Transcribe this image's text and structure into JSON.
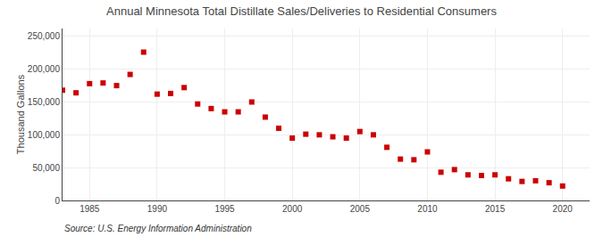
{
  "chart_data": {
    "type": "scatter",
    "title": "Annual Minnesota Total Distillate Sales/Deliveries to Residential Consumers",
    "ylabel": "Thousand Gallons",
    "annotations": [
      "Source: U.S. Energy Information Administration"
    ],
    "x": [
      1983,
      1984,
      1985,
      1986,
      1987,
      1988,
      1989,
      1990,
      1991,
      1992,
      1993,
      1994,
      1995,
      1996,
      1997,
      1998,
      1999,
      2000,
      2001,
      2002,
      2003,
      2004,
      2005,
      2006,
      2007,
      2008,
      2009,
      2010,
      2011,
      2012,
      2013,
      2014,
      2015,
      2016,
      2017,
      2018,
      2019,
      2020
    ],
    "values": [
      168000,
      164000,
      178000,
      179000,
      175000,
      192000,
      226000,
      162000,
      163000,
      172000,
      147000,
      140000,
      135000,
      135000,
      150000,
      127000,
      110000,
      95000,
      101000,
      100000,
      97000,
      95000,
      105000,
      100000,
      81000,
      63000,
      62000,
      74000,
      43000,
      47000,
      39000,
      38000,
      39000,
      33000,
      29000,
      30000,
      27000,
      22000
    ],
    "color": "#cc0000",
    "marker": "square",
    "xlim": [
      1983,
      2022
    ],
    "ylim": [
      0,
      262000
    ],
    "xticks": [
      1985,
      1990,
      1995,
      2000,
      2005,
      2010,
      2015,
      2020
    ],
    "yticks": [
      0,
      {
        "value": 50000,
        "label": "50,000"
      },
      {
        "value": 100000,
        "label": "100,000"
      },
      {
        "value": 150000,
        "label": "150,000"
      },
      {
        "value": 200000,
        "label": "200,000"
      },
      {
        "value": 250000,
        "label": "250,000"
      }
    ],
    "grid": true
  }
}
